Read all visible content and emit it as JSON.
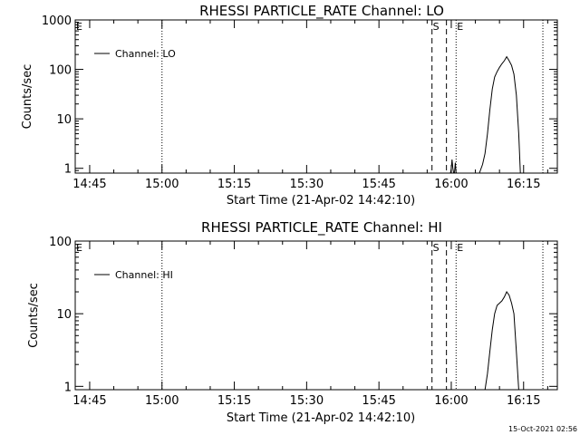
{
  "footer": {
    "timestamp": "15-Oct-2021 02:56"
  },
  "chart_data": [
    {
      "type": "line",
      "title": "RHESSI PARTICLE_RATE Channel: LO",
      "xlabel": "Start Time (21-Apr-02 14:42:10)",
      "ylabel": "Counts/sec",
      "yscale": "log",
      "xlim": [
        "14:42",
        "16:22"
      ],
      "ylim": [
        0.8,
        1000
      ],
      "x_ticks": [
        "14:45",
        "15:00",
        "15:15",
        "15:30",
        "15:45",
        "16:00",
        "16:15"
      ],
      "y_ticks": [
        {
          "value": 1,
          "label": "1"
        },
        {
          "value": 10,
          "label": "10"
        },
        {
          "value": 100,
          "label": "100"
        },
        {
          "value": 1000,
          "label": "1000"
        }
      ],
      "legend": {
        "position": "top-left",
        "entries": [
          "Channel: LO"
        ]
      },
      "markers": [
        {
          "label": "E",
          "time": "14:42",
          "style": "solid"
        },
        {
          "label": "",
          "time": "15:00",
          "style": "dotted"
        },
        {
          "label": "S",
          "time": "15:56",
          "style": "dashed"
        },
        {
          "label": "",
          "time": "15:59",
          "style": "dashed"
        },
        {
          "label": "E",
          "time": "16:01",
          "style": "dotted"
        },
        {
          "label": "",
          "time": "16:19",
          "style": "dotted"
        }
      ],
      "series": [
        {
          "name": "Channel: LO",
          "segments": [
            [
              [
                "15:59:50",
                0.8
              ],
              [
                "16:00:00",
                1.0
              ],
              [
                "16:00:10",
                1.5
              ],
              [
                "16:00:20",
                1.0
              ],
              [
                "16:00:30",
                0.8
              ]
            ],
            [
              [
                "16:00:40",
                0.8
              ],
              [
                "16:00:50",
                1.3
              ],
              [
                "16:01:00",
                0.8
              ]
            ],
            [
              [
                "16:05:50",
                0.8
              ],
              [
                "16:06:30",
                1.2
              ],
              [
                "16:07:00",
                2
              ],
              [
                "16:07:30",
                5
              ],
              [
                "16:08:00",
                15
              ],
              [
                "16:08:30",
                40
              ],
              [
                "16:09:00",
                70
              ],
              [
                "16:09:30",
                90
              ],
              [
                "16:10:00",
                110
              ],
              [
                "16:10:30",
                130
              ],
              [
                "16:11:00",
                150
              ],
              [
                "16:11:30",
                180
              ],
              [
                "16:12:00",
                150
              ],
              [
                "16:12:30",
                120
              ],
              [
                "16:13:00",
                80
              ],
              [
                "16:13:30",
                30
              ],
              [
                "16:14:00",
                5
              ],
              [
                "16:14:20",
                0.8
              ]
            ]
          ]
        }
      ]
    },
    {
      "type": "line",
      "title": "RHESSI PARTICLE_RATE Channel: HI",
      "xlabel": "Start Time (21-Apr-02 14:42:10)",
      "ylabel": "Counts/sec",
      "yscale": "log",
      "xlim": [
        "14:42",
        "16:22"
      ],
      "ylim": [
        0.9,
        100
      ],
      "x_ticks": [
        "14:45",
        "15:00",
        "15:15",
        "15:30",
        "15:45",
        "16:00",
        "16:15"
      ],
      "y_ticks": [
        {
          "value": 1,
          "label": "1"
        },
        {
          "value": 10,
          "label": "10"
        },
        {
          "value": 100,
          "label": "100"
        }
      ],
      "legend": {
        "position": "top-left",
        "entries": [
          "Channel: HI"
        ]
      },
      "markers": [
        {
          "label": "E",
          "time": "14:42",
          "style": "solid"
        },
        {
          "label": "",
          "time": "15:00",
          "style": "dotted"
        },
        {
          "label": "S",
          "time": "15:56",
          "style": "dashed"
        },
        {
          "label": "",
          "time": "15:59",
          "style": "dashed"
        },
        {
          "label": "E",
          "time": "16:01",
          "style": "dotted"
        },
        {
          "label": "",
          "time": "16:19",
          "style": "dotted"
        }
      ],
      "series": [
        {
          "name": "Channel: HI",
          "segments": [
            [
              [
                "16:07:00",
                0.9
              ],
              [
                "16:07:30",
                1.5
              ],
              [
                "16:08:00",
                3
              ],
              [
                "16:08:30",
                6
              ],
              [
                "16:09:00",
                10
              ],
              [
                "16:09:30",
                13
              ],
              [
                "16:10:00",
                14
              ],
              [
                "16:10:30",
                15
              ],
              [
                "16:11:00",
                17
              ],
              [
                "16:11:30",
                20
              ],
              [
                "16:12:00",
                18
              ],
              [
                "16:12:30",
                14
              ],
              [
                "16:13:00",
                10
              ],
              [
                "16:13:30",
                3
              ],
              [
                "16:14:00",
                0.9
              ]
            ]
          ]
        }
      ]
    }
  ]
}
